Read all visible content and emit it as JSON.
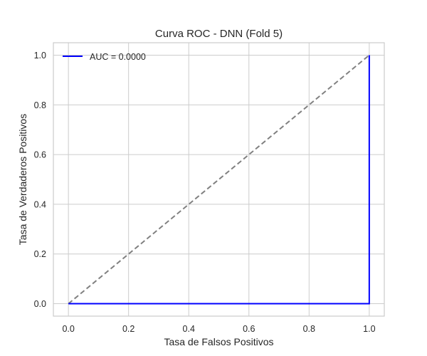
{
  "chart_data": {
    "type": "line",
    "title": "Curva ROC - DNN (Fold 5)",
    "xlabel": "Tasa de Falsos Positivos",
    "ylabel": "Tasa de Verdaderos Positivos",
    "xlim": [
      -0.05,
      1.05
    ],
    "ylim": [
      -0.05,
      1.05
    ],
    "x_ticks": [
      "0.0",
      "0.2",
      "0.4",
      "0.6",
      "0.8",
      "1.0"
    ],
    "y_ticks": [
      "0.0",
      "0.2",
      "0.4",
      "0.6",
      "0.8",
      "1.0"
    ],
    "grid": true,
    "legend_position": "top-left",
    "series": [
      {
        "name": "AUC = 0.0000",
        "color": "#0000ff",
        "style": "solid",
        "x": [
          0.0,
          1.0,
          1.0
        ],
        "y": [
          0.0,
          0.0,
          1.0
        ]
      },
      {
        "color": "#808080",
        "style": "dashed",
        "x": [
          0.0,
          1.0
        ],
        "y": [
          0.0,
          1.0
        ]
      }
    ]
  }
}
